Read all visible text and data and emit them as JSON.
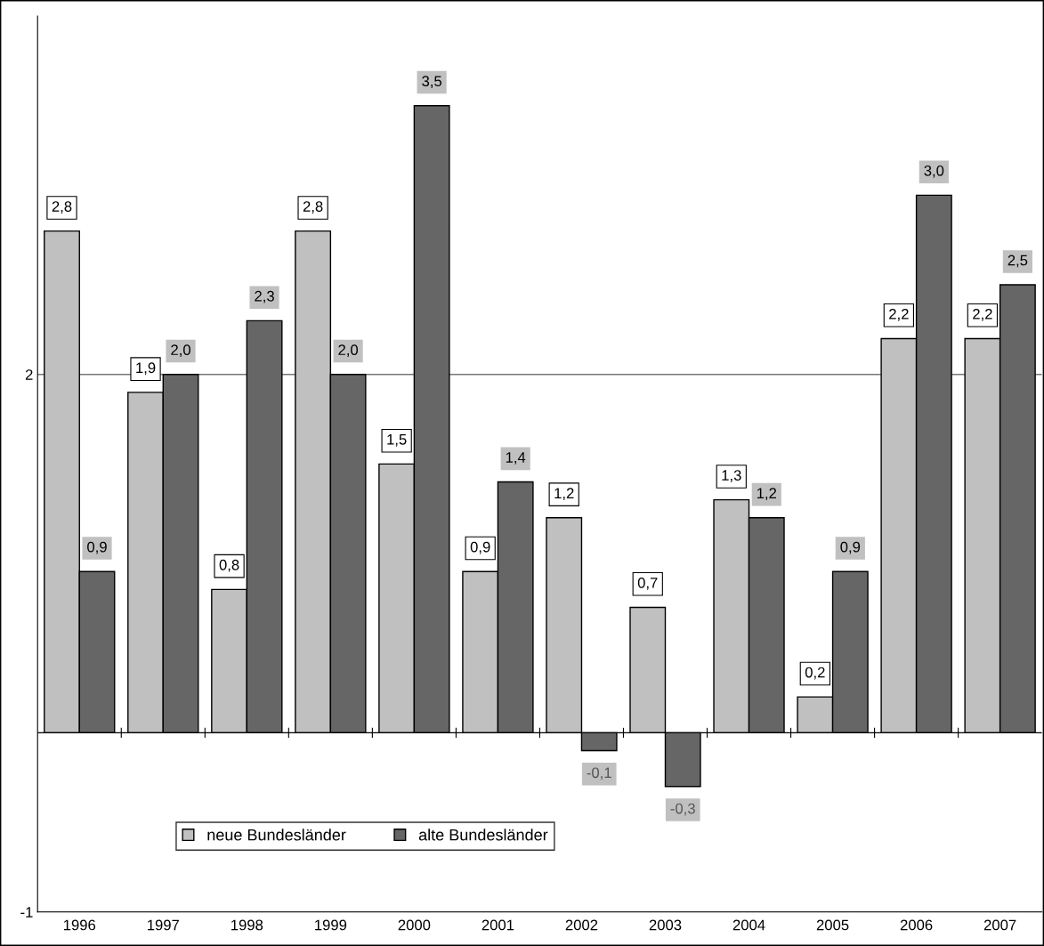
{
  "chart_data": {
    "type": "bar",
    "categories": [
      "1996",
      "1997",
      "1998",
      "1999",
      "2000",
      "2001",
      "2002",
      "2003",
      "2004",
      "2005",
      "2006",
      "2007"
    ],
    "series": [
      {
        "name": "neue Bundesländer",
        "color": "#c0c0c0",
        "values": [
          2.8,
          1.9,
          0.8,
          2.8,
          1.5,
          0.9,
          1.2,
          0.7,
          1.3,
          0.2,
          2.2,
          2.2
        ],
        "value_labels": [
          "2,8",
          "1,9",
          "0,8",
          "2,8",
          "1,5",
          "0,9",
          "1,2",
          "0,7",
          "1,3",
          "0,2",
          "2,2",
          "2,2"
        ]
      },
      {
        "name": "alte Bundesländer",
        "color": "#666666",
        "values": [
          0.9,
          2.0,
          2.3,
          2.0,
          3.5,
          1.4,
          -0.1,
          -0.3,
          1.2,
          0.9,
          3.0,
          2.5
        ],
        "value_labels": [
          "0,9",
          "2,0",
          "2,3",
          "2,0",
          "3,5",
          "1,4",
          "-0,1",
          "-0,3",
          "1,2",
          "0,9",
          "3,0",
          "2,5"
        ]
      }
    ],
    "ylim": [
      -1,
      4
    ],
    "yticks": [
      -1,
      2
    ],
    "grid": "y",
    "legend": "bottom left"
  }
}
